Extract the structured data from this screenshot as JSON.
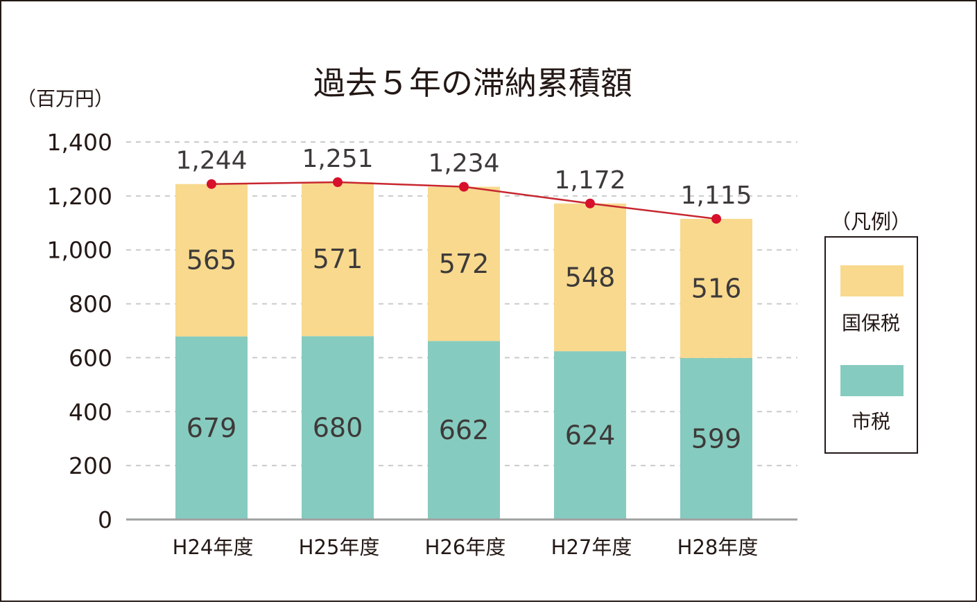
{
  "chart_data": {
    "type": "bar",
    "stacked": true,
    "title": "過去５年の滞納累積額",
    "unit_label": "（百万円）",
    "categories": [
      "H24年度",
      "H25年度",
      "H26年度",
      "H27年度",
      "H28年度"
    ],
    "series": [
      {
        "name": "市税",
        "values": [
          679,
          680,
          662,
          624,
          599
        ],
        "color": "#86cbbf"
      },
      {
        "name": "国保税",
        "values": [
          565,
          571,
          572,
          548,
          516
        ],
        "color": "#f8d98e"
      }
    ],
    "totals": {
      "type": "line",
      "values": [
        1244,
        1251,
        1234,
        1172,
        1115
      ],
      "labels": [
        "1,244",
        "1,251",
        "1,234",
        "1,172",
        "1,115"
      ],
      "line_color": "#c7262f",
      "marker_color": "#d7102b"
    },
    "ylim": [
      0,
      1400
    ],
    "yticks": [
      0,
      200,
      400,
      600,
      800,
      1000,
      1200,
      1400
    ],
    "ytick_labels": [
      "0",
      "200",
      "400",
      "600",
      "800",
      "1,000",
      "1,200",
      "1,400"
    ],
    "grid": true,
    "legend": {
      "title": "（凡例）",
      "position": "right",
      "items": [
        {
          "label": "国保税",
          "color": "#f8d98e"
        },
        {
          "label": "市税",
          "color": "#86cbbf"
        }
      ]
    }
  }
}
